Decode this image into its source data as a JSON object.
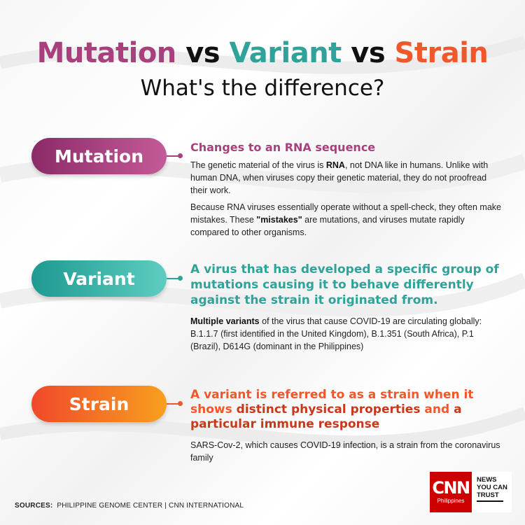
{
  "title": {
    "part1": "Mutation",
    "vs1": " vs ",
    "part2": "Variant",
    "vs2": " vs ",
    "part3": "Strain"
  },
  "subtitle": "What's the difference?",
  "colors": {
    "mutation": "#a8407e",
    "variant": "#2fa39a",
    "strain": "#f0572a",
    "cnn_red": "#cc0000"
  },
  "mutation": {
    "label": "Mutation",
    "heading": "Changes to an RNA sequence",
    "p1_a": "The genetic material of the virus is ",
    "p1_b": "RNA",
    "p1_c": ", not DNA like in humans. Unlike with human DNA, when viruses copy their genetic material, they do not proofread their work.",
    "p2_a": "Because RNA viruses essentially operate without a spell-check, they often make mistakes. These ",
    "p2_b": "\"mistakes\"",
    "p2_c": " are mutations, and viruses mutate rapidly compared to other organisms."
  },
  "variant": {
    "label": "Variant",
    "heading": "A virus that has developed a specific group of mutations causing it to behave differently against the strain it originated from.",
    "p1_a": "Multiple variants",
    "p1_b": " of the virus that cause COVID-19 are circulating globally: B.1.1.7 (first identified in the United Kingdom), B.1.351 (South Africa), P.1 (Brazil), D614G (dominant in the Philippines)"
  },
  "strain": {
    "label": "Strain",
    "heading_a": "A variant is referred to as a strain when it shows ",
    "heading_b": "distinct physical properties",
    "heading_c": " and ",
    "heading_d": "a particular immune response",
    "p1": "SARS-Cov-2, which causes COVID-19 infection, is a strain from the coronavirus family"
  },
  "sources": {
    "label": "SOURCES:",
    "text": "PHILIPPINE GENOME CENTER | CNN INTERNATIONAL"
  },
  "logo": {
    "brand": "CNN",
    "region": "Philippines",
    "line1": "NEWS",
    "line2": "YOU CAN",
    "line3": "TRUST"
  }
}
